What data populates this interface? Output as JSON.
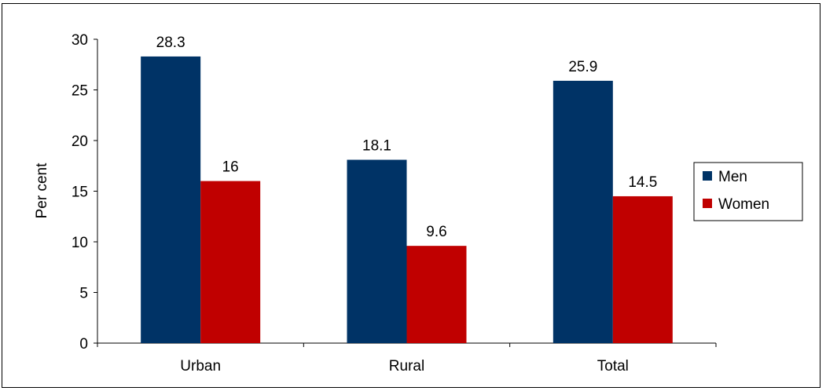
{
  "chart_data": {
    "type": "bar",
    "title": "",
    "xlabel": "",
    "ylabel": "Per cent",
    "ylim": [
      0,
      30
    ],
    "yticks": [
      0,
      5,
      10,
      15,
      20,
      25,
      30
    ],
    "categories": [
      "Urban",
      "Rural",
      "Total"
    ],
    "series": [
      {
        "name": "Men",
        "values": [
          28.3,
          18.1,
          25.9
        ],
        "color": "#003366"
      },
      {
        "name": "Women",
        "values": [
          16,
          9.6,
          14.5
        ],
        "color": "#C00000"
      }
    ],
    "data_labels": [
      [
        "28.3",
        "18.1",
        "25.9"
      ],
      [
        "16",
        "9.6",
        "14.5"
      ]
    ],
    "grid": false,
    "legend_position": "right"
  }
}
